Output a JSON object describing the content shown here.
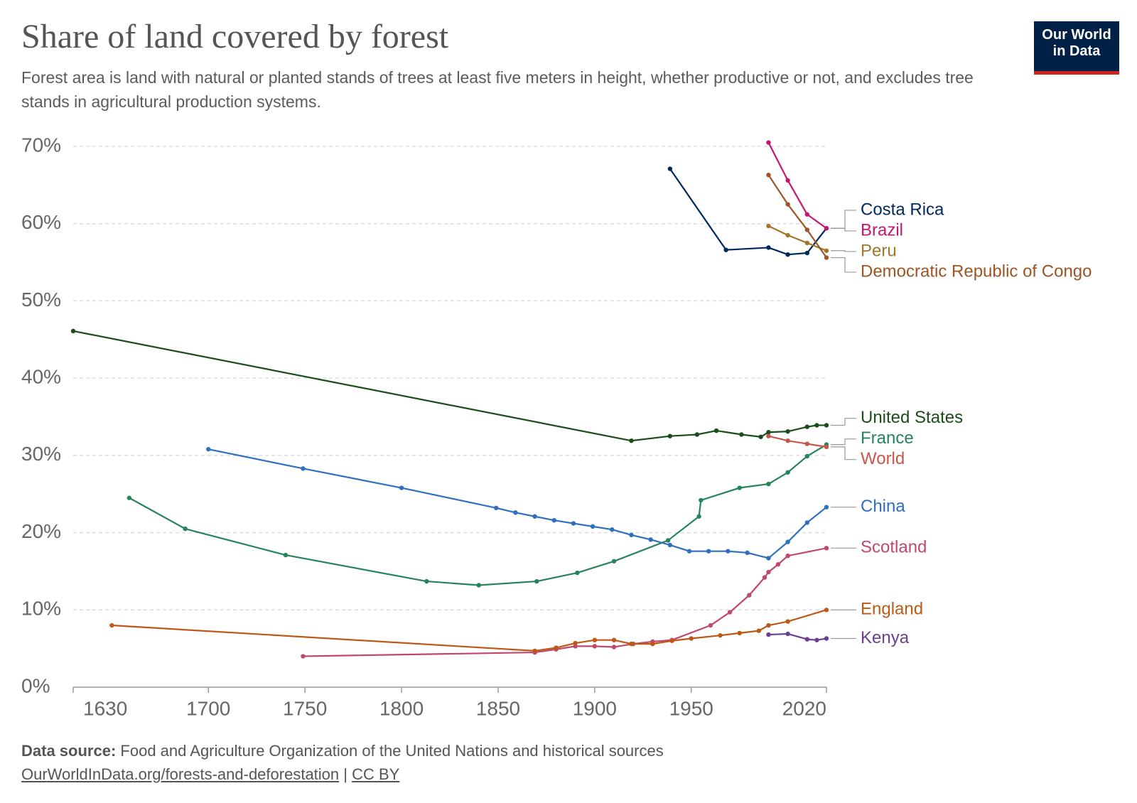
{
  "chart_data": {
    "type": "line",
    "title": "Share of land covered by forest",
    "subtitle": "Forest area is land with natural or planted stands of trees at least five meters in height, whether productive or not, and excludes tree stands in agricultural production systems.",
    "logo": [
      "Our World",
      "in Data"
    ],
    "source_label": "Data source:",
    "source": "Food and Agriculture Organization of the United Nations and historical sources",
    "url": "OurWorldInData.org/forests-and-deforestation",
    "separator": "|",
    "license": "CC BY",
    "xlim": [
      1630,
      2020
    ],
    "xticks": [
      1630,
      1700,
      1750,
      1800,
      1850,
      1900,
      1950,
      2020
    ],
    "ylim": [
      0,
      70
    ],
    "yticks": [
      {
        "value": 0,
        "label": "0%"
      },
      {
        "value": 10,
        "label": "10%"
      },
      {
        "value": 20,
        "label": "20%"
      },
      {
        "value": 30,
        "label": "30%"
      },
      {
        "value": 40,
        "label": "40%"
      },
      {
        "value": 50,
        "label": "50%"
      },
      {
        "value": 60,
        "label": "60%"
      },
      {
        "value": 70,
        "label": "70%"
      }
    ],
    "grid": true,
    "series": [
      {
        "name": "Costa Rica",
        "color": "#00295b",
        "x": [
          1939,
          1968,
          1990,
          2000,
          2010,
          2020
        ],
        "values": [
          67.1,
          56.6,
          56.9,
          56.0,
          56.2,
          59.4
        ]
      },
      {
        "name": "Brazil",
        "color": "#c5176f",
        "x": [
          1990,
          2000,
          2010,
          2020
        ],
        "values": [
          70.5,
          65.6,
          61.2,
          59.4
        ]
      },
      {
        "name": "Peru",
        "color": "#a2752b",
        "x": [
          1990,
          2000,
          2010,
          2020
        ],
        "values": [
          59.7,
          58.5,
          57.5,
          56.5
        ]
      },
      {
        "name": "Democratic Republic of Congo",
        "color": "#9c5523",
        "x": [
          1990,
          2000,
          2010,
          2020
        ],
        "values": [
          66.3,
          62.5,
          59.2,
          55.6
        ]
      },
      {
        "name": "United States",
        "color": "#1b4d1b",
        "x": [
          1630,
          1919,
          1939,
          1953,
          1963,
          1976,
          1986,
          1990,
          2000,
          2010,
          2015,
          2020
        ],
        "values": [
          46.1,
          31.9,
          32.5,
          32.7,
          33.2,
          32.7,
          32.4,
          33.0,
          33.1,
          33.7,
          33.9,
          33.9
        ]
      },
      {
        "name": "France",
        "color": "#26845c",
        "x": [
          1659,
          1688,
          1740,
          1813,
          1840,
          1870,
          1891,
          1910,
          1938,
          1954,
          1955,
          1975,
          1990,
          2000,
          2010,
          2020
        ],
        "values": [
          24.5,
          20.5,
          17.1,
          13.7,
          13.2,
          13.7,
          14.8,
          16.3,
          19.0,
          22.1,
          24.2,
          25.8,
          26.3,
          27.8,
          29.9,
          31.4
        ]
      },
      {
        "name": "World",
        "color": "#c8554a",
        "x": [
          1990,
          2000,
          2010,
          2020
        ],
        "values": [
          32.5,
          31.9,
          31.5,
          31.1
        ]
      },
      {
        "name": "China",
        "color": "#2f6fbf",
        "x": [
          1700,
          1749,
          1800,
          1849,
          1859,
          1869,
          1879,
          1889,
          1899,
          1909,
          1919,
          1929,
          1939,
          1949,
          1959,
          1969,
          1979,
          1990,
          2000,
          2010,
          2020
        ],
        "values": [
          30.8,
          28.3,
          25.8,
          23.2,
          22.6,
          22.1,
          21.6,
          21.2,
          20.8,
          20.4,
          19.7,
          19.1,
          18.4,
          17.6,
          17.6,
          17.6,
          17.4,
          16.7,
          18.8,
          21.3,
          23.3
        ]
      },
      {
        "name": "Scotland",
        "color": "#c0486e",
        "x": [
          1749,
          1869,
          1880,
          1890,
          1900,
          1910,
          1920,
          1930,
          1940,
          1960,
          1970,
          1980,
          1988,
          1990,
          1995,
          2000,
          2020
        ],
        "values": [
          4.0,
          4.5,
          4.9,
          5.3,
          5.3,
          5.2,
          5.6,
          5.9,
          6.1,
          8.0,
          9.7,
          11.9,
          14.2,
          14.9,
          15.9,
          17.0,
          18.0
        ]
      },
      {
        "name": "England",
        "color": "#be5915",
        "x": [
          1650,
          1869,
          1880,
          1890,
          1900,
          1910,
          1919,
          1930,
          1940,
          1950,
          1965,
          1975,
          1985,
          1990,
          2000,
          2020
        ],
        "values": [
          8.0,
          4.7,
          5.1,
          5.7,
          6.1,
          6.1,
          5.6,
          5.6,
          6.0,
          6.3,
          6.7,
          7.0,
          7.3,
          8.0,
          8.5,
          10.0
        ]
      },
      {
        "name": "Kenya",
        "color": "#6d3e91",
        "x": [
          1990,
          2000,
          2010,
          2015,
          2020
        ],
        "values": [
          6.8,
          6.9,
          6.2,
          6.1,
          6.3
        ]
      }
    ]
  }
}
